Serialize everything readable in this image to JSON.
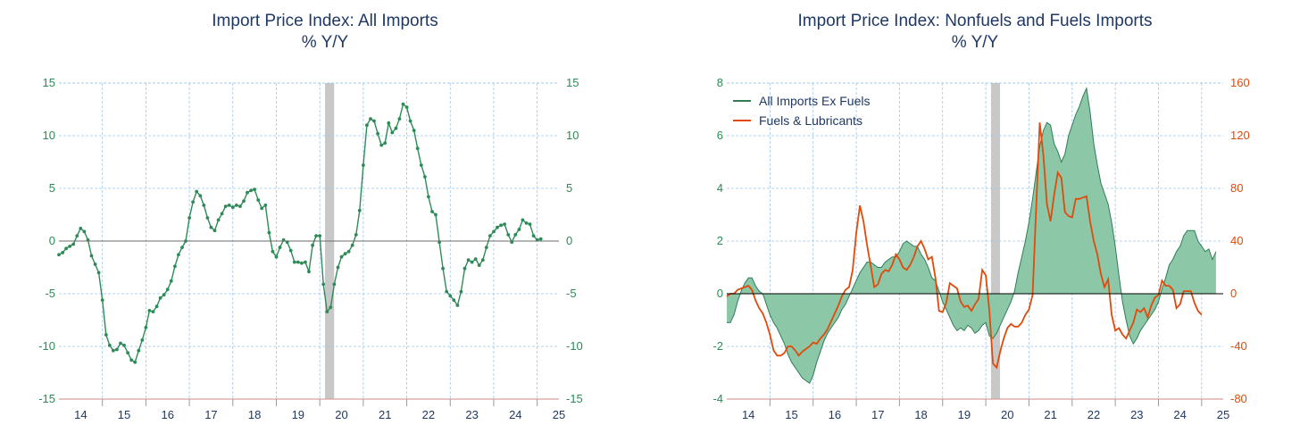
{
  "chart_data": [
    {
      "type": "line",
      "title": "Import Price Index: All Imports",
      "subtitle": "% Y/Y",
      "ylim": [
        -15,
        15
      ],
      "yticks": [
        15,
        10,
        5,
        0,
        -5,
        -10,
        -15
      ],
      "y2ticks": [
        15,
        10,
        5,
        0,
        -5,
        -10,
        -15
      ],
      "xtick_labels": [
        "14",
        "15",
        "16",
        "17",
        "18",
        "19",
        "20",
        "21",
        "22",
        "23",
        "24",
        "25"
      ],
      "grid": true,
      "recession_shading": {
        "start": 2020.12,
        "end": 2020.33
      },
      "colors": {
        "line": "#2e8b57",
        "axis_left": "#2e8b57",
        "axis_right": "#2e8b57",
        "shade": "#c8c8c8",
        "grid": "#9fc5e8",
        "title": "#1f3864"
      },
      "series": [
        {
          "x_start": 2014.0,
          "x_step": 0.0833333,
          "values": [
            -1.3,
            -1.1,
            -0.7,
            -0.5,
            -0.3,
            0.5,
            1.2,
            0.9,
            0.1,
            -1.4,
            -2.2,
            -3.0,
            -5.6,
            -8.9,
            -9.9,
            -10.4,
            -10.3,
            -9.7,
            -9.9,
            -10.6,
            -11.3,
            -11.5,
            -10.4,
            -9.4,
            -8.2,
            -6.6,
            -6.7,
            -6.2,
            -5.4,
            -5.1,
            -4.6,
            -3.8,
            -2.4,
            -1.3,
            -0.6,
            0.0,
            2.2,
            3.7,
            4.7,
            4.3,
            3.4,
            2.2,
            1.3,
            1.0,
            2.0,
            2.6,
            3.3,
            3.4,
            3.2,
            3.4,
            3.3,
            3.8,
            4.6,
            4.8,
            4.9,
            3.9,
            3.1,
            3.4,
            0.8,
            -1.0,
            -1.5,
            -0.6,
            0.1,
            -0.1,
            -0.9,
            -2.0,
            -2.0,
            -2.1,
            -2.0,
            -2.9,
            -0.4,
            0.5,
            0.5,
            -4.1,
            -6.7,
            -6.3,
            -4.1,
            -2.5,
            -1.5,
            -1.2,
            -1.0,
            -0.4,
            0.6,
            2.9,
            7.2,
            11.0,
            11.6,
            11.4,
            10.2,
            9.1,
            9.3,
            11.2,
            10.3,
            10.7,
            11.6,
            13.0,
            12.7,
            11.4,
            10.5,
            8.8,
            7.2,
            6.1,
            4.2,
            2.8,
            2.5,
            -0.1,
            -2.6,
            -4.8,
            -5.2,
            -5.6,
            -6.1,
            -4.8,
            -2.6,
            -1.8,
            -2.0,
            -1.7,
            -2.3,
            -1.8,
            -0.6,
            0.5,
            0.9,
            1.3,
            1.5,
            1.6,
            0.6,
            -0.1,
            0.6,
            1.1,
            2.0,
            1.7,
            1.6,
            0.5,
            0.1,
            0.2
          ]
        }
      ]
    },
    {
      "type": "area",
      "title": "Import Price Index: Nonfuels and Fuels Imports",
      "subtitle": "% Y/Y",
      "ylim": [
        -4,
        8
      ],
      "y2lim": [
        -80,
        160
      ],
      "yticks": [
        8,
        6,
        4,
        2,
        0,
        -2,
        -4
      ],
      "y2ticks": [
        160,
        120,
        80,
        40,
        0,
        -40,
        -80
      ],
      "xtick_labels": [
        "14",
        "15",
        "16",
        "17",
        "18",
        "19",
        "20",
        "21",
        "22",
        "23",
        "24",
        "25"
      ],
      "grid": true,
      "legend_position": "top-left",
      "recession_shading": {
        "start": 2020.12,
        "end": 2020.33
      },
      "colors": {
        "area_fill": "#8cc8a8",
        "area_line": "#2e7d57",
        "fuel_line": "#e04a0a",
        "axis_left": "#2e8b57",
        "axis_right": "#e04a0a",
        "shade": "#c8c8c8",
        "grid": "#9fc5e8",
        "title": "#1f3864"
      },
      "series": [
        {
          "name": "All Imports Ex Fuels",
          "axis": "left",
          "x_start": 2014.0,
          "x_step": 0.0833333,
          "values": [
            -1.1,
            -1.1,
            -0.8,
            -0.3,
            0.1,
            0.4,
            0.6,
            0.6,
            0.3,
            0.1,
            0.0,
            -0.4,
            -0.8,
            -1.1,
            -1.3,
            -1.6,
            -1.9,
            -2.3,
            -2.6,
            -2.8,
            -3.0,
            -3.2,
            -3.3,
            -3.4,
            -3.1,
            -2.6,
            -2.2,
            -1.8,
            -1.5,
            -1.3,
            -1.1,
            -0.9,
            -0.6,
            -0.4,
            -0.1,
            0.2,
            0.5,
            0.8,
            1.0,
            1.2,
            1.2,
            1.1,
            1.0,
            1.0,
            1.2,
            1.3,
            1.4,
            1.4,
            1.6,
            1.9,
            2.0,
            1.9,
            1.8,
            1.8,
            1.5,
            1.3,
            1.0,
            0.6,
            0.5,
            0.1,
            -0.3,
            -0.6,
            -0.9,
            -1.2,
            -1.4,
            -1.3,
            -1.4,
            -1.2,
            -1.3,
            -1.5,
            -1.4,
            -1.2,
            -1.1,
            -1.6,
            -1.7,
            -1.5,
            -1.2,
            -0.9,
            -0.6,
            -0.3,
            0.1,
            0.8,
            1.4,
            2.0,
            2.7,
            3.6,
            4.6,
            5.6,
            6.2,
            6.5,
            6.4,
            5.7,
            5.4,
            5.0,
            5.3,
            6.0,
            6.4,
            6.8,
            7.1,
            7.5,
            7.8,
            6.9,
            5.7,
            4.9,
            4.2,
            3.8,
            3.4,
            2.7,
            1.8,
            0.7,
            -0.3,
            -1.0,
            -1.6,
            -1.9,
            -1.7,
            -1.4,
            -1.2,
            -1.0,
            -0.8,
            -0.6,
            -0.3,
            0.2,
            0.6,
            1.1,
            1.3,
            1.6,
            1.8,
            2.2,
            2.4,
            2.4,
            2.4,
            2.0,
            1.8,
            1.6,
            1.7,
            1.3,
            1.6
          ]
        },
        {
          "name": "Fuels & Lubricants",
          "axis": "right",
          "x_start": 2014.0,
          "x_step": 0.0833333,
          "values": [
            -2,
            0,
            0,
            3,
            4,
            5,
            6,
            3,
            -5,
            -11,
            -15,
            -22,
            -31,
            -43,
            -47,
            -47,
            -45,
            -40,
            -40,
            -43,
            -47,
            -44,
            -42,
            -40,
            -37,
            -38,
            -34,
            -31,
            -27,
            -21,
            -15,
            -9,
            -2,
            3,
            5,
            18,
            46,
            67,
            55,
            37,
            21,
            5,
            7,
            15,
            18,
            17,
            22,
            30,
            26,
            20,
            18,
            22,
            28,
            36,
            40,
            34,
            26,
            28,
            12,
            -13,
            -14,
            -7,
            8,
            6,
            4,
            -6,
            -10,
            -9,
            -13,
            -8,
            -4,
            18,
            14,
            -13,
            -53,
            -56,
            -44,
            -34,
            -26,
            -23,
            -25,
            -25,
            -22,
            -16,
            -12,
            -1,
            65,
            130,
            105,
            68,
            55,
            75,
            92,
            88,
            62,
            59,
            58,
            72,
            72,
            73,
            74,
            55,
            40,
            30,
            15,
            5,
            11,
            -16,
            -28,
            -26,
            -31,
            -34,
            -28,
            -22,
            -12,
            -14,
            -11,
            -18,
            -9,
            -3,
            -1,
            10,
            6,
            6,
            3,
            -11,
            -8,
            2,
            2,
            2,
            -7,
            -13,
            -16
          ]
        }
      ]
    }
  ]
}
